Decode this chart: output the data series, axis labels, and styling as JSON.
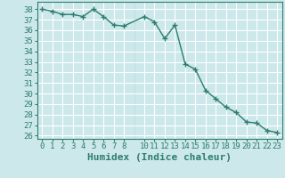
{
  "x": [
    0,
    1,
    2,
    3,
    4,
    5,
    6,
    7,
    8,
    10,
    11,
    12,
    13,
    14,
    15,
    16,
    17,
    18,
    19,
    20,
    21,
    22,
    23
  ],
  "y": [
    38.0,
    37.8,
    37.5,
    37.5,
    37.3,
    38.0,
    37.3,
    36.5,
    36.4,
    37.3,
    36.8,
    35.2,
    36.5,
    32.8,
    32.3,
    30.3,
    29.5,
    28.7,
    28.2,
    27.3,
    27.2,
    26.5,
    26.3
  ],
  "xlabel": "Humidex (Indice chaleur)",
  "xlim": [
    -0.5,
    23.5
  ],
  "ylim": [
    25.7,
    38.7
  ],
  "yticks": [
    26,
    27,
    28,
    29,
    30,
    31,
    32,
    33,
    34,
    35,
    36,
    37,
    38
  ],
  "xticks": [
    0,
    1,
    2,
    3,
    4,
    5,
    6,
    7,
    8,
    10,
    11,
    12,
    13,
    14,
    15,
    16,
    17,
    18,
    19,
    20,
    21,
    22,
    23
  ],
  "line_color": "#2e7d6e",
  "marker": "+",
  "bg_color": "#cce8ea",
  "grid_major_color": "#ffffff",
  "grid_minor_color": "#b8d8da",
  "tick_fontsize": 6.5,
  "xlabel_fontsize": 8,
  "line_width": 1.0,
  "marker_size": 4,
  "marker_edge_width": 1.0
}
